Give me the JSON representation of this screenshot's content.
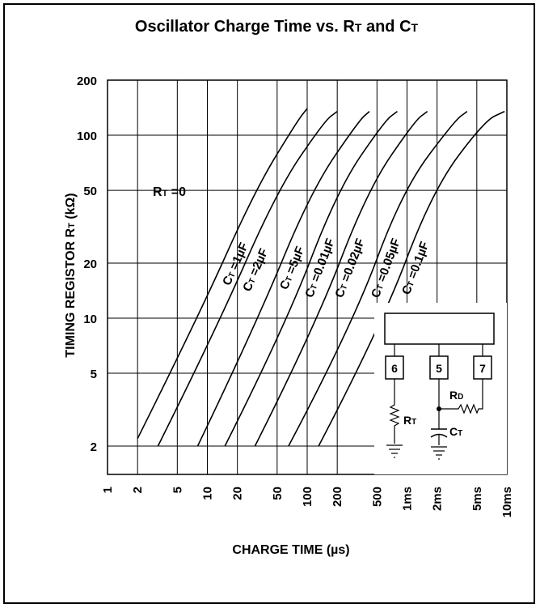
{
  "chart_data": {
    "type": "line",
    "title": "Oscillator Charge Time vs. RT and CT",
    "title_parts": {
      "lead": "Oscillator Charge Time vs. R",
      "rsub": "T",
      "mid": " and C",
      "csub": "T"
    },
    "xlabel": "CHARGE TIME (µs)",
    "ylabel": "TIMING REGISTOR RT (kΩ)",
    "ylabel_parts": {
      "lead": "TIMING REGISTOR R",
      "sub": "T",
      "unit": " (kΩ)"
    },
    "x_scale": "log",
    "y_scale": "log",
    "xlim": [
      1,
      10000
    ],
    "ylim": [
      1.4,
      200
    ],
    "grid": true,
    "x_ticks": [
      {
        "value": 1,
        "label": "1"
      },
      {
        "value": 2,
        "label": "2"
      },
      {
        "value": 5,
        "label": "5"
      },
      {
        "value": 10,
        "label": "10"
      },
      {
        "value": 20,
        "label": "20"
      },
      {
        "value": 50,
        "label": "50"
      },
      {
        "value": 100,
        "label": "100"
      },
      {
        "value": 200,
        "label": "200"
      },
      {
        "value": 500,
        "label": "500"
      },
      {
        "value": 1000,
        "label": "1ms"
      },
      {
        "value": 2000,
        "label": "2ms"
      },
      {
        "value": 5000,
        "label": "5ms"
      },
      {
        "value": 10000,
        "label": "10ms"
      }
    ],
    "y_ticks": [
      {
        "value": 2,
        "label": "2"
      },
      {
        "value": 5,
        "label": "5"
      },
      {
        "value": 10,
        "label": "10"
      },
      {
        "value": 20,
        "label": "20"
      },
      {
        "value": 50,
        "label": "50"
      },
      {
        "value": 100,
        "label": "100"
      },
      {
        "value": 200,
        "label": "200"
      }
    ],
    "annotation": {
      "lead": "R",
      "sub": "T",
      "tail": " =0"
    },
    "series": [
      {
        "name": "CT =1µF",
        "sub": "T",
        "tail": " =1µF",
        "points": [
          [
            2.0,
            2.2
          ],
          [
            8.0,
            10.0
          ],
          [
            30.0,
            50.0
          ],
          [
            80.0,
            120.0
          ],
          [
            100.0,
            140.0
          ]
        ]
      },
      {
        "name": "CT =2µF",
        "sub": "T",
        "tail": " =2µF",
        "points": [
          [
            3.2,
            2.0
          ],
          [
            12.0,
            8.5
          ],
          [
            50.0,
            50.0
          ],
          [
            150.0,
            120.0
          ],
          [
            200.0,
            135.0
          ]
        ]
      },
      {
        "name": "CT =5µF",
        "sub": "T",
        "tail": " =5µF",
        "points": [
          [
            8.0,
            2.0
          ],
          [
            30.0,
            9.0
          ],
          [
            110.0,
            50.0
          ],
          [
            330.0,
            120.0
          ],
          [
            420.0,
            135.0
          ]
        ]
      },
      {
        "name": "CT =0.01µF",
        "sub": "T",
        "tail": " =0.01µF",
        "points": [
          [
            15.0,
            2.0
          ],
          [
            60.0,
            9.0
          ],
          [
            200.0,
            50.0
          ],
          [
            600.0,
            120.0
          ],
          [
            800.0,
            135.0
          ]
        ]
      },
      {
        "name": "CT =0.02µF",
        "sub": "T",
        "tail": " =0.02µF",
        "points": [
          [
            30.0,
            2.0
          ],
          [
            120.0,
            9.0
          ],
          [
            400.0,
            50.0
          ],
          [
            1200.0,
            120.0
          ],
          [
            1600.0,
            135.0
          ]
        ]
      },
      {
        "name": "CT =0.05µF",
        "sub": "T",
        "tail": " =0.05µF",
        "points": [
          [
            65.0,
            2.0
          ],
          [
            280.0,
            9.0
          ],
          [
            900.0,
            50.0
          ],
          [
            3000.0,
            120.0
          ],
          [
            4000.0,
            135.0
          ]
        ]
      },
      {
        "name": "CT =0.1µF",
        "sub": "T",
        "tail": " =0.1µF",
        "points": [
          [
            130.0,
            2.0
          ],
          [
            550.0,
            9.0
          ],
          [
            1800.0,
            50.0
          ],
          [
            6000.0,
            120.0
          ],
          [
            9500.0,
            135.0
          ]
        ]
      }
    ],
    "inset": {
      "pins": [
        "6",
        "5",
        "7"
      ],
      "r_label": {
        "lead": "R",
        "sub": "T"
      },
      "c_label": {
        "lead": "C",
        "sub": "T"
      },
      "d_label": {
        "lead": "R",
        "sub": "D"
      }
    }
  }
}
